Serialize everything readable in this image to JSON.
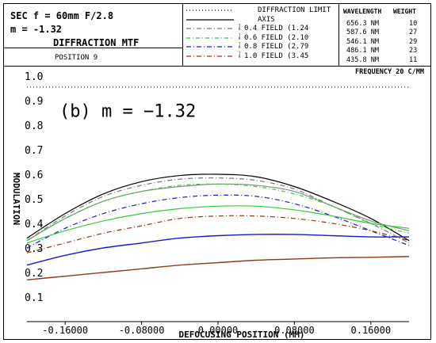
{
  "header": {
    "line1": "SEC f = 60mm F/2.8",
    "line2": "m = -1.32",
    "line3": "DIFFRACTION MTF",
    "line4": "POSITION 9"
  },
  "legend": {
    "entries": [
      {
        "label": "DIFFRACTION LIMIT",
        "tr": "",
        "color": "#000000",
        "dash": "1,3"
      },
      {
        "label": "AXIS",
        "tr": "",
        "color": "#000000",
        "dash": ""
      },
      {
        "label": "0.4 FIELD (1.24",
        "tr": "T R",
        "color": "#777777",
        "dash": "6,3,1,3"
      },
      {
        "label": "0.6 FIELD (2.10",
        "tr": "T R",
        "color": "#22cc22",
        "dash": "5,3,1,3"
      },
      {
        "label": "0.8 FIELD (2.79",
        "tr": "T R",
        "color": "#1a1acc",
        "dash": "6,3,1,3"
      },
      {
        "label": "1.0 FIELD (3.45",
        "tr": "T R",
        "color": "#cc1a1a",
        "dash": "6,3,1,3"
      }
    ]
  },
  "wavelengths": {
    "header_wavelength": "WAVELENGTH",
    "header_weight": "WEIGHT",
    "rows": [
      {
        "wl": "656.3",
        "unit": "NM",
        "weight": "10"
      },
      {
        "wl": "587.6",
        "unit": "NM",
        "weight": "27"
      },
      {
        "wl": "546.1",
        "unit": "NM",
        "weight": "29"
      },
      {
        "wl": "486.1",
        "unit": "NM",
        "weight": "23"
      },
      {
        "wl": "435.8",
        "unit": "NM",
        "weight": "11"
      }
    ]
  },
  "chart_data": {
    "type": "line",
    "annotation": "(b) m = −1.32",
    "frequency_label": "FREQUENCY  20 C/MM",
    "xlabel": "DEFOCUSING POSITION (MM)",
    "ylabel": "MODULATION",
    "xlim": [
      -0.2,
      0.2
    ],
    "ylim": [
      0.0,
      1.0
    ],
    "xticks": [
      -0.16,
      -0.08,
      0.0,
      0.08,
      0.16
    ],
    "xtick_labels": [
      "-0.16000",
      "-0.08000",
      "0.00000",
      "0.08000",
      "0.16000"
    ],
    "yticks": [
      0.1,
      0.2,
      0.3,
      0.4,
      0.5,
      0.6,
      0.7,
      0.8,
      0.9,
      1.0
    ],
    "ytick_labels": [
      "0.1",
      "0.2",
      "0.3",
      "0.4",
      "0.5",
      "0.6",
      "0.7",
      "0.8",
      "0.9",
      "1.0"
    ],
    "x": [
      -0.2,
      -0.16,
      -0.12,
      -0.08,
      -0.04,
      0.0,
      0.04,
      0.08,
      0.12,
      0.16,
      0.2
    ],
    "series": [
      {
        "name": "DIFFRACTION LIMIT",
        "color": "#000000",
        "dash": "1,3",
        "width": 1.2,
        "values": [
          0.955,
          0.955,
          0.955,
          0.955,
          0.955,
          0.955,
          0.955,
          0.955,
          0.955,
          0.955,
          0.955
        ]
      },
      {
        "name": "AXIS",
        "color": "#000000",
        "dash": "",
        "width": 1.2,
        "values": [
          0.34,
          0.44,
          0.52,
          0.57,
          0.595,
          0.6,
          0.59,
          0.55,
          0.49,
          0.42,
          0.33
        ]
      },
      {
        "name": "0.4 FIELD (1.24",
        "color": "#777777",
        "dash": "6,3,1,3",
        "width": 1.2,
        "values": [
          0.33,
          0.43,
          0.51,
          0.555,
          0.58,
          0.585,
          0.575,
          0.54,
          0.47,
          0.4,
          0.32
        ]
      },
      {
        "name": "0.4 FIELD (1.24",
        "color": "#888888",
        "dash": "",
        "width": 1.2,
        "values": [
          0.33,
          0.42,
          0.49,
          0.53,
          0.55,
          0.56,
          0.555,
          0.53,
          0.47,
          0.41,
          0.37
        ]
      },
      {
        "name": "0.6 FIELD (2.10",
        "color": "#33cc33",
        "dash": "5,3,1,3",
        "width": 1.2,
        "values": [
          0.33,
          0.42,
          0.49,
          0.53,
          0.555,
          0.56,
          0.55,
          0.52,
          0.47,
          0.4,
          0.36
        ]
      },
      {
        "name": "0.8 FIELD (2.79",
        "color": "#1a1acc",
        "dash": "6,3,1,3",
        "width": 1.2,
        "values": [
          0.3,
          0.38,
          0.44,
          0.48,
          0.505,
          0.515,
          0.51,
          0.48,
          0.43,
          0.37,
          0.31
        ]
      },
      {
        "name": "0.6 FIELD (2.10",
        "color": "#33cc33",
        "dash": "",
        "width": 1.2,
        "values": [
          0.32,
          0.37,
          0.41,
          0.44,
          0.46,
          0.47,
          0.47,
          0.455,
          0.43,
          0.4,
          0.38
        ]
      },
      {
        "name": "1.0 FIELD (3.45",
        "color": "#8b3a1a",
        "dash": "6,3,1,3",
        "width": 1.2,
        "values": [
          0.28,
          0.32,
          0.36,
          0.39,
          0.42,
          0.43,
          0.43,
          0.42,
          0.4,
          0.37,
          0.33
        ]
      },
      {
        "name": "0.8 FIELD (2.79",
        "color": "#1a1acc",
        "dash": "",
        "width": 1.4,
        "values": [
          0.23,
          0.27,
          0.3,
          0.32,
          0.34,
          0.35,
          0.355,
          0.355,
          0.35,
          0.345,
          0.345
        ]
      },
      {
        "name": "1.0 FIELD (3.45",
        "color": "#8b3a1a",
        "dash": "",
        "width": 1.4,
        "values": [
          0.17,
          0.185,
          0.2,
          0.215,
          0.23,
          0.24,
          0.25,
          0.255,
          0.26,
          0.262,
          0.265
        ]
      }
    ]
  }
}
